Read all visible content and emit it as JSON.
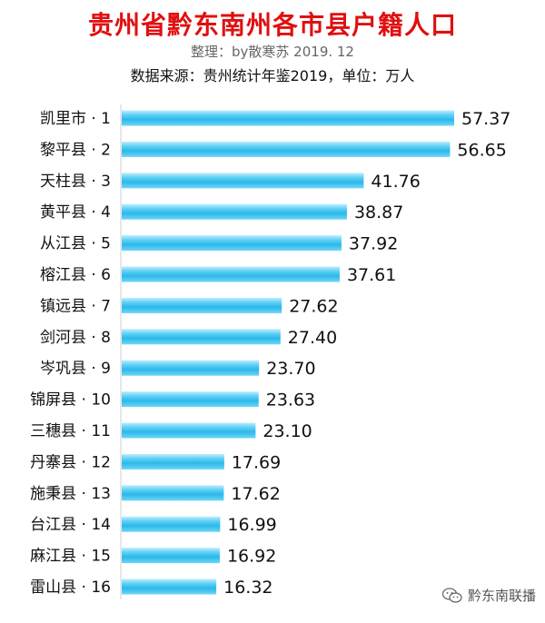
{
  "header": {
    "title": "贵州省黔东南州各市县户籍人口",
    "subtitle": "整理：by散寒苏  2019. 12",
    "source": "数据来源：贵州统计年鉴2019，单位：万人"
  },
  "watermark": {
    "text": "黔东南联播",
    "icon": "wechat-icon"
  },
  "colors": {
    "title": "#e01010",
    "bar_light": "#bfeefe",
    "bar_mid": "#3cc3ef",
    "bar_dark": "#1aa6dd"
  },
  "chart_data": {
    "type": "bar",
    "orientation": "horizontal",
    "categories": [
      "凯里市 · 1",
      "黎平县 · 2",
      "天柱县 · 3",
      "黄平县 · 4",
      "从江县 · 5",
      "榕江县 · 6",
      "镇远县 · 7",
      "剑河县 · 8",
      "岑巩县 · 9",
      "锦屏县 · 10",
      "三穗县 · 11",
      "丹寨县 · 12",
      "施秉县 · 13",
      "台江县 · 14",
      "麻江县 · 15",
      "雷山县 · 16"
    ],
    "values": [
      57.37,
      56.65,
      41.76,
      38.87,
      37.92,
      37.61,
      27.62,
      27.4,
      23.7,
      23.63,
      23.1,
      17.69,
      17.62,
      16.99,
      16.92,
      16.32
    ],
    "value_labels": [
      "57.37",
      "56.65",
      "41.76",
      "38.87",
      "37.92",
      "37.61",
      "27.62",
      "27.40",
      "23.70",
      "23.63",
      "23.10",
      "17.69",
      "17.62",
      "16.99",
      "16.92",
      "16.32"
    ],
    "xlim": [
      0,
      57.37
    ],
    "grid": false,
    "legend": "none"
  }
}
